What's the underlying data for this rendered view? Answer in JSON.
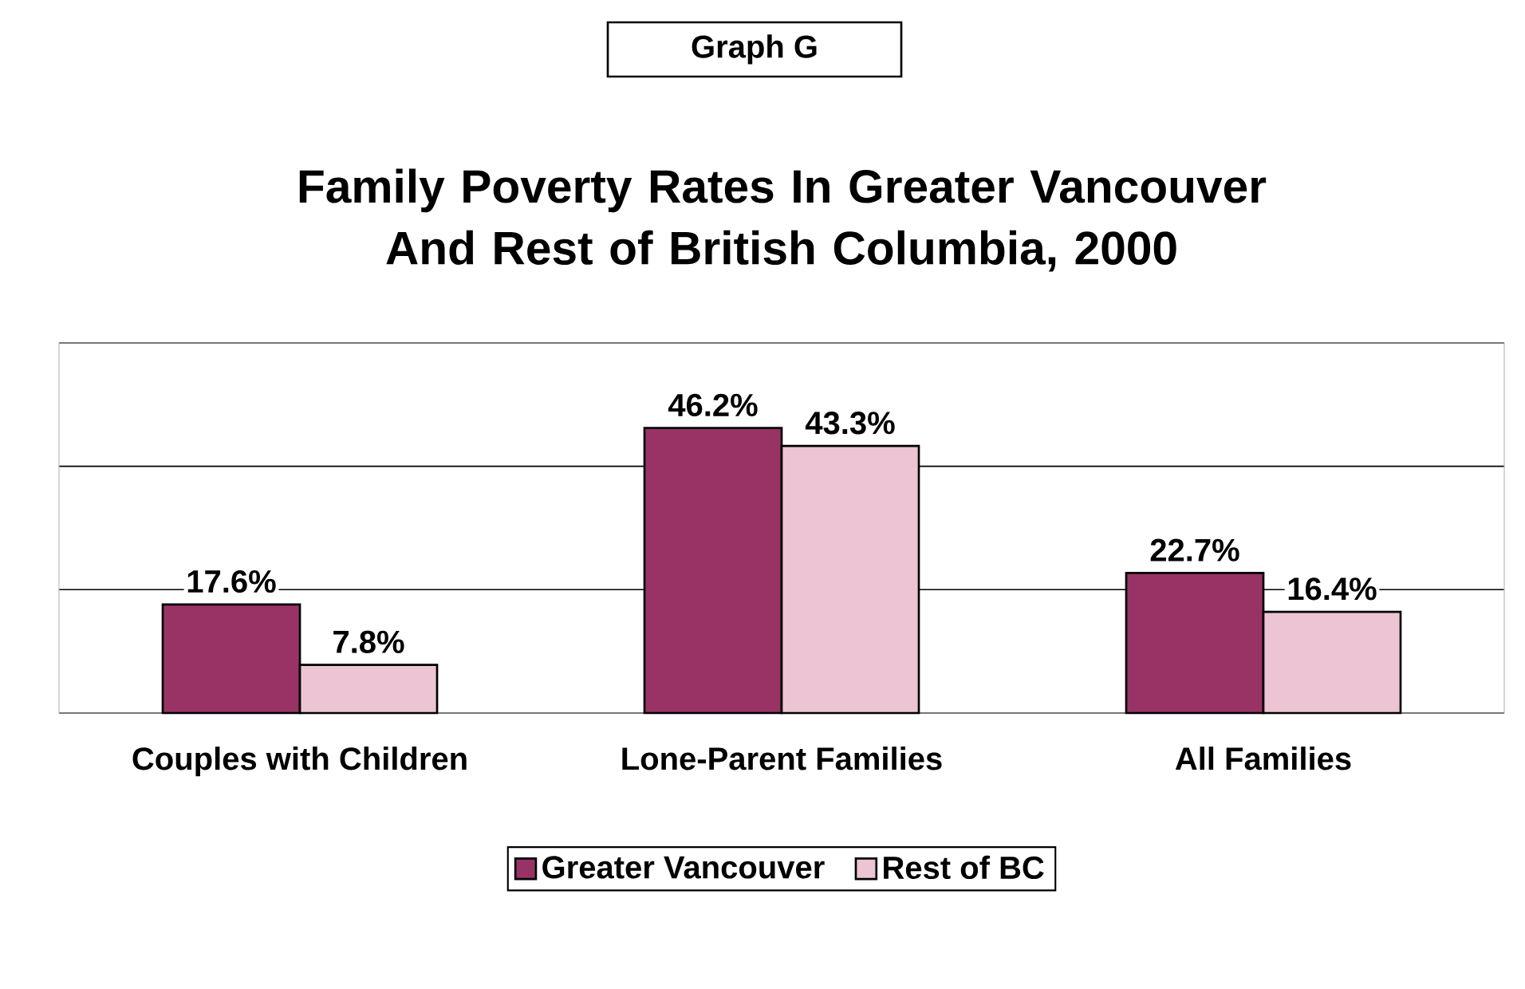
{
  "chart_data": {
    "type": "bar",
    "title": "Family Poverty Rates In Greater Vancouver And Rest of British Columbia, 2000",
    "annotations": [
      "Graph G"
    ],
    "categories": [
      "Couples with Children",
      "Lone-Parent Families",
      "All Families"
    ],
    "series": [
      {
        "name": "Greater Vancouver",
        "color": "#993366",
        "values": [
          17.6,
          46.2,
          22.7
        ],
        "value_labels": [
          "17.6%",
          "46.2%",
          "22.7%"
        ]
      },
      {
        "name": "Rest of BC",
        "color": "#ecc4d4",
        "values": [
          7.8,
          43.3,
          16.4
        ],
        "value_labels": [
          "7.8%",
          "43.3%",
          "16.4%"
        ]
      }
    ],
    "ylim": [
      0,
      60
    ],
    "yticks": [
      {
        "value": 0,
        "label": null
      },
      {
        "value": 20,
        "label": null
      },
      {
        "value": 40,
        "label": null
      },
      {
        "value": 60,
        "label": null
      }
    ],
    "grid": "y",
    "legend": "bottom",
    "tick_labels": "x"
  }
}
